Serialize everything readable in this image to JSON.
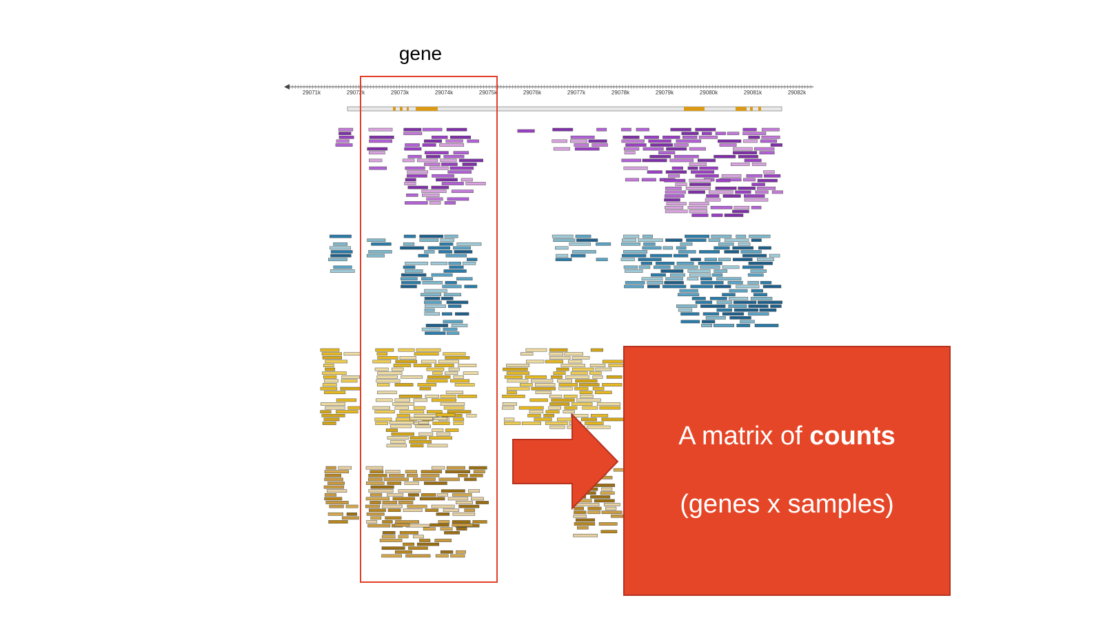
{
  "gene_label": "gene",
  "axis": {
    "ticks": [
      "29071k",
      "29072k",
      "29073k",
      "29074k",
      "29075k",
      "29076k",
      "29077k",
      "29078k",
      "29079k",
      "29080k",
      "29081k",
      "29082k"
    ]
  },
  "callout": {
    "line1_prefix": "A matrix of ",
    "line1_bold": "counts",
    "line2": "(genes x samples)"
  },
  "colors": {
    "highlight": "#e33e27",
    "callout_bg": "#e54627",
    "sample_1": "#9b3fc4",
    "sample_2": "#2a7ba8",
    "sample_3": "#e6b81e",
    "sample_4": "#b8861c"
  }
}
